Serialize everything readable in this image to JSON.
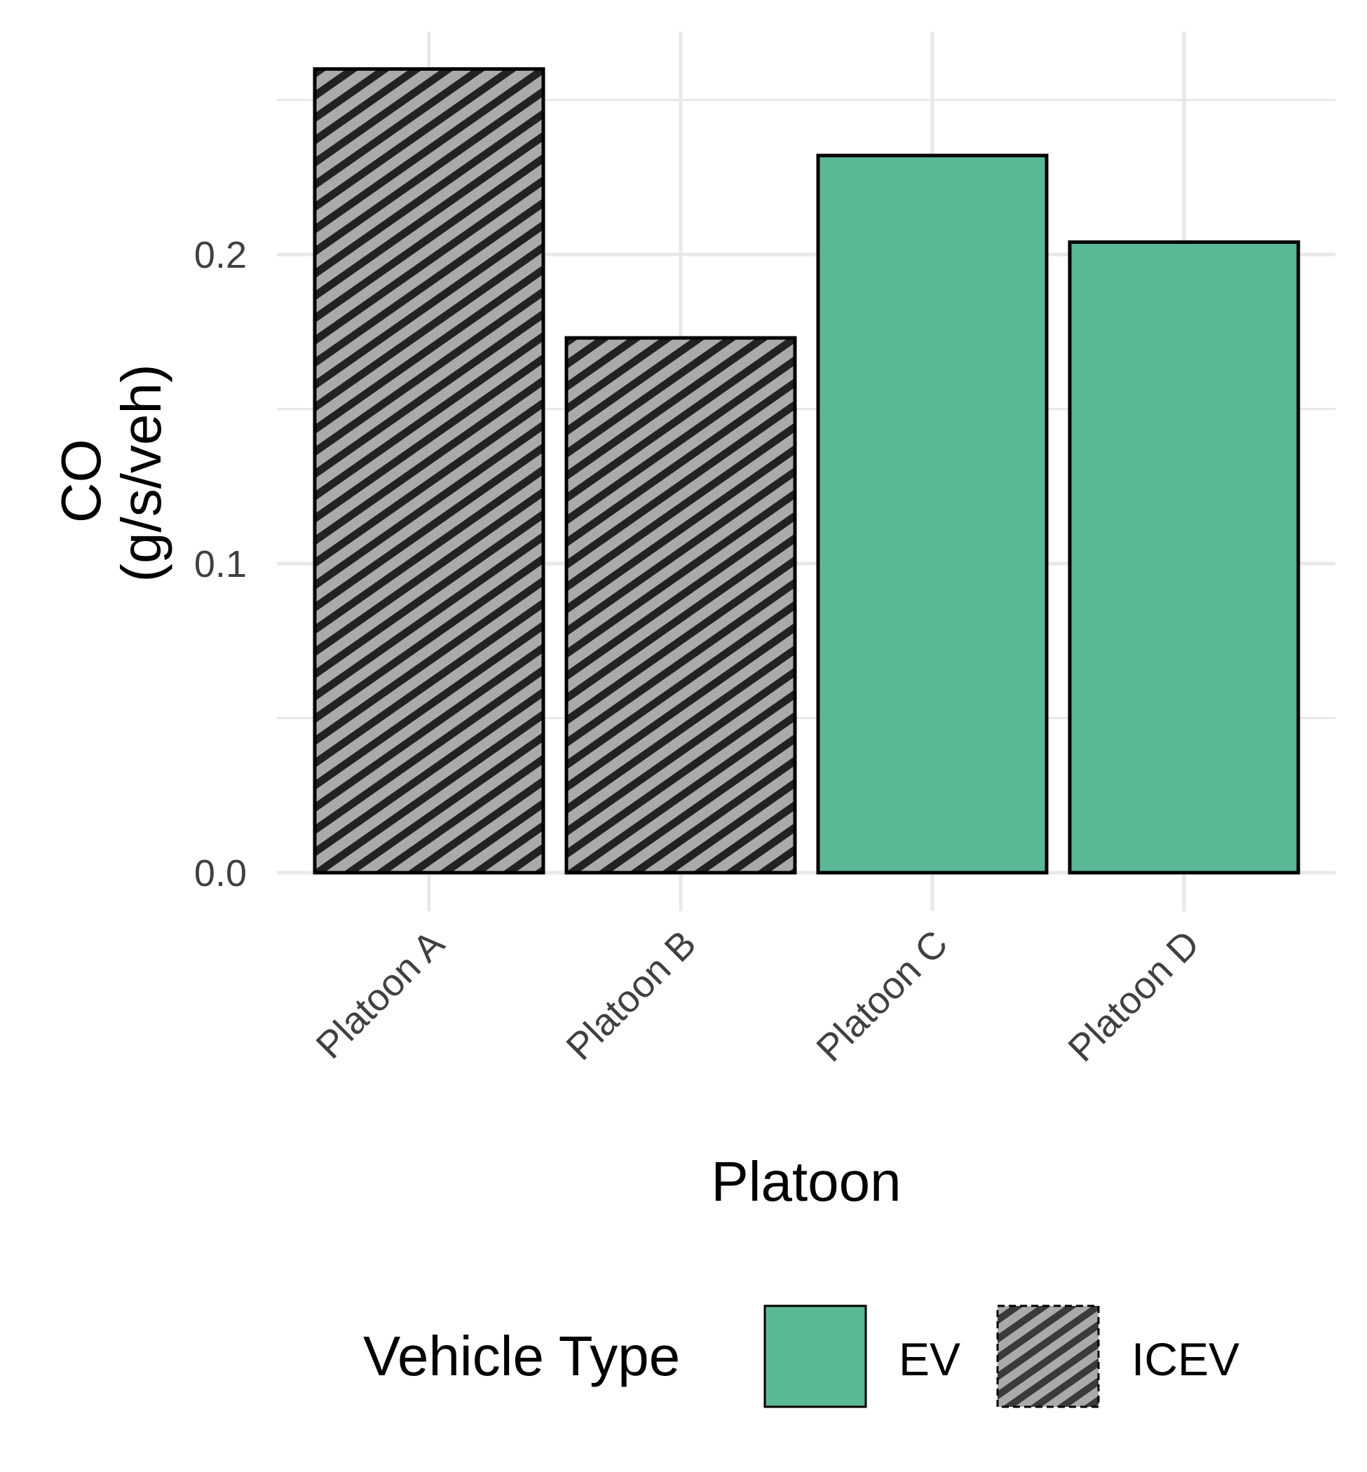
{
  "chart_data": {
    "type": "bar",
    "title": "",
    "xlabel": "Platoon",
    "ylabel": [
      "CO",
      "(g/s/veh)"
    ],
    "categories": [
      "Platoon A",
      "Platoon B",
      "Platoon C",
      "Platoon D"
    ],
    "values": [
      0.26,
      0.173,
      0.232,
      0.204
    ],
    "bar_group": [
      "ICEV",
      "ICEV",
      "EV",
      "EV"
    ],
    "ylim": [
      0,
      0.26
    ],
    "yticks": [
      0.0,
      0.1,
      0.2
    ],
    "ytick_labels": [
      "0.0",
      "0.1",
      "0.2"
    ],
    "grid": true,
    "legend": {
      "position": "bottom",
      "title": "Vehicle Type",
      "items": [
        {
          "label": "EV",
          "color": "#5ab995",
          "pattern": "solid"
        },
        {
          "label": "ICEV",
          "color": "#aaaaaa",
          "pattern": "diagonal-stripes"
        }
      ]
    },
    "colors": {
      "EV": "#5ab995",
      "ICEV": "#aaaaaa",
      "stripe": "#222222",
      "grid": "#e8e8e8",
      "outline": "#000000"
    }
  }
}
